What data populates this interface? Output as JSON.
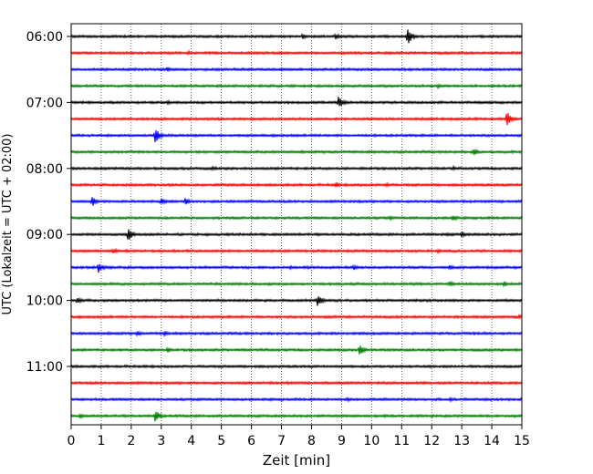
{
  "chart_data": {
    "type": "line",
    "xlabel": "Zeit  [min]",
    "ylabel": "UTC (Lokalzeit = UTC + 02:00)",
    "xlim": [
      0,
      15
    ],
    "x_ticks": [
      0,
      1,
      2,
      3,
      4,
      5,
      6,
      7,
      8,
      9,
      10,
      11,
      12,
      13,
      14,
      15
    ],
    "x_tick_labels": [
      "0",
      "1",
      "2",
      "3",
      "4",
      "5",
      "6",
      "7",
      "8",
      "9",
      "10",
      "11",
      "12",
      "13",
      "14",
      "15"
    ],
    "y_tick_labels": [
      "06:00",
      "07:00",
      "08:00",
      "09:00",
      "10:00",
      "11:00"
    ],
    "y_tick_rows": [
      0,
      4,
      8,
      12,
      16,
      20
    ],
    "row_interval_minutes": 15,
    "grid": "vertical dotted",
    "row_colors": [
      "#000000",
      "#ff0000",
      "#0000ff",
      "#008000"
    ],
    "rows": [
      {
        "time": "06:00",
        "color": "#000000",
        "events": [
          {
            "t": 11.2,
            "amp": 3.2
          },
          {
            "t": 8.8,
            "amp": 1.2
          },
          {
            "t": 7.7,
            "amp": 1.0
          }
        ]
      },
      {
        "time": "06:15",
        "color": "#ff0000",
        "events": [
          {
            "t": 3.9,
            "amp": 0.8
          }
        ]
      },
      {
        "time": "06:30",
        "color": "#0000ff",
        "events": [
          {
            "t": 3.2,
            "amp": 1.1
          }
        ]
      },
      {
        "time": "06:45",
        "color": "#008000",
        "events": [
          {
            "t": 12.2,
            "amp": 0.8
          }
        ]
      },
      {
        "time": "07:00",
        "color": "#000000",
        "events": [
          {
            "t": 8.9,
            "amp": 2.6
          },
          {
            "t": 3.2,
            "amp": 0.8
          }
        ]
      },
      {
        "time": "07:15",
        "color": "#ff0000",
        "events": [
          {
            "t": 14.5,
            "amp": 3.0
          }
        ]
      },
      {
        "time": "07:30",
        "color": "#0000ff",
        "events": [
          {
            "t": 2.8,
            "amp": 2.8
          }
        ]
      },
      {
        "time": "07:45",
        "color": "#008000",
        "events": [
          {
            "t": 13.4,
            "amp": 1.6
          }
        ]
      },
      {
        "time": "08:00",
        "color": "#000000",
        "events": [
          {
            "t": 4.7,
            "amp": 0.8
          },
          {
            "t": 12.7,
            "amp": 0.8
          }
        ]
      },
      {
        "time": "08:15",
        "color": "#ff0000",
        "events": [
          {
            "t": 8.8,
            "amp": 1.2
          },
          {
            "t": 10.5,
            "amp": 0.8
          }
        ]
      },
      {
        "time": "08:30",
        "color": "#0000ff",
        "events": [
          {
            "t": 0.7,
            "amp": 2.0
          },
          {
            "t": 3.0,
            "amp": 1.6
          },
          {
            "t": 3.8,
            "amp": 1.4
          }
        ]
      },
      {
        "time": "08:45",
        "color": "#008000",
        "events": [
          {
            "t": 12.7,
            "amp": 1.4
          },
          {
            "t": 10.6,
            "amp": 0.8
          }
        ]
      },
      {
        "time": "09:00",
        "color": "#000000",
        "events": [
          {
            "t": 1.9,
            "amp": 2.6
          },
          {
            "t": 13.0,
            "amp": 1.2
          },
          {
            "t": 12.5,
            "amp": 0.8
          }
        ]
      },
      {
        "time": "09:15",
        "color": "#ff0000",
        "events": [
          {
            "t": 1.4,
            "amp": 1.2
          },
          {
            "t": 12.2,
            "amp": 0.8
          }
        ]
      },
      {
        "time": "09:30",
        "color": "#0000ff",
        "events": [
          {
            "t": 0.9,
            "amp": 2.2
          },
          {
            "t": 12.6,
            "amp": 1.2
          },
          {
            "t": 9.4,
            "amp": 1.0
          },
          {
            "t": 7.3,
            "amp": 0.8
          }
        ]
      },
      {
        "time": "09:45",
        "color": "#008000",
        "events": [
          {
            "t": 14.4,
            "amp": 1.2
          },
          {
            "t": 12.6,
            "amp": 1.2
          }
        ]
      },
      {
        "time": "10:00",
        "color": "#000000",
        "events": [
          {
            "t": 8.2,
            "amp": 2.4
          },
          {
            "t": 0.2,
            "amp": 1.4
          }
        ]
      },
      {
        "time": "10:15",
        "color": "#ff0000",
        "events": [
          {
            "t": 14.9,
            "amp": 0.8
          }
        ]
      },
      {
        "time": "10:30",
        "color": "#0000ff",
        "events": [
          {
            "t": 2.2,
            "amp": 1.2
          },
          {
            "t": 3.1,
            "amp": 1.0
          }
        ]
      },
      {
        "time": "10:45",
        "color": "#008000",
        "events": [
          {
            "t": 9.6,
            "amp": 2.2
          },
          {
            "t": 3.2,
            "amp": 1.0
          }
        ]
      },
      {
        "time": "11:00",
        "color": "#000000",
        "events": []
      },
      {
        "time": "11:15",
        "color": "#ff0000",
        "events": [
          {
            "t": 7.2,
            "amp": 0.6
          }
        ]
      },
      {
        "time": "11:30",
        "color": "#0000ff",
        "events": [
          {
            "t": 9.2,
            "amp": 0.8
          },
          {
            "t": 12.6,
            "amp": 0.8
          }
        ]
      },
      {
        "time": "11:45",
        "color": "#008000",
        "events": [
          {
            "t": 2.8,
            "amp": 2.4
          },
          {
            "t": 0.3,
            "amp": 1.0
          }
        ]
      }
    ]
  }
}
